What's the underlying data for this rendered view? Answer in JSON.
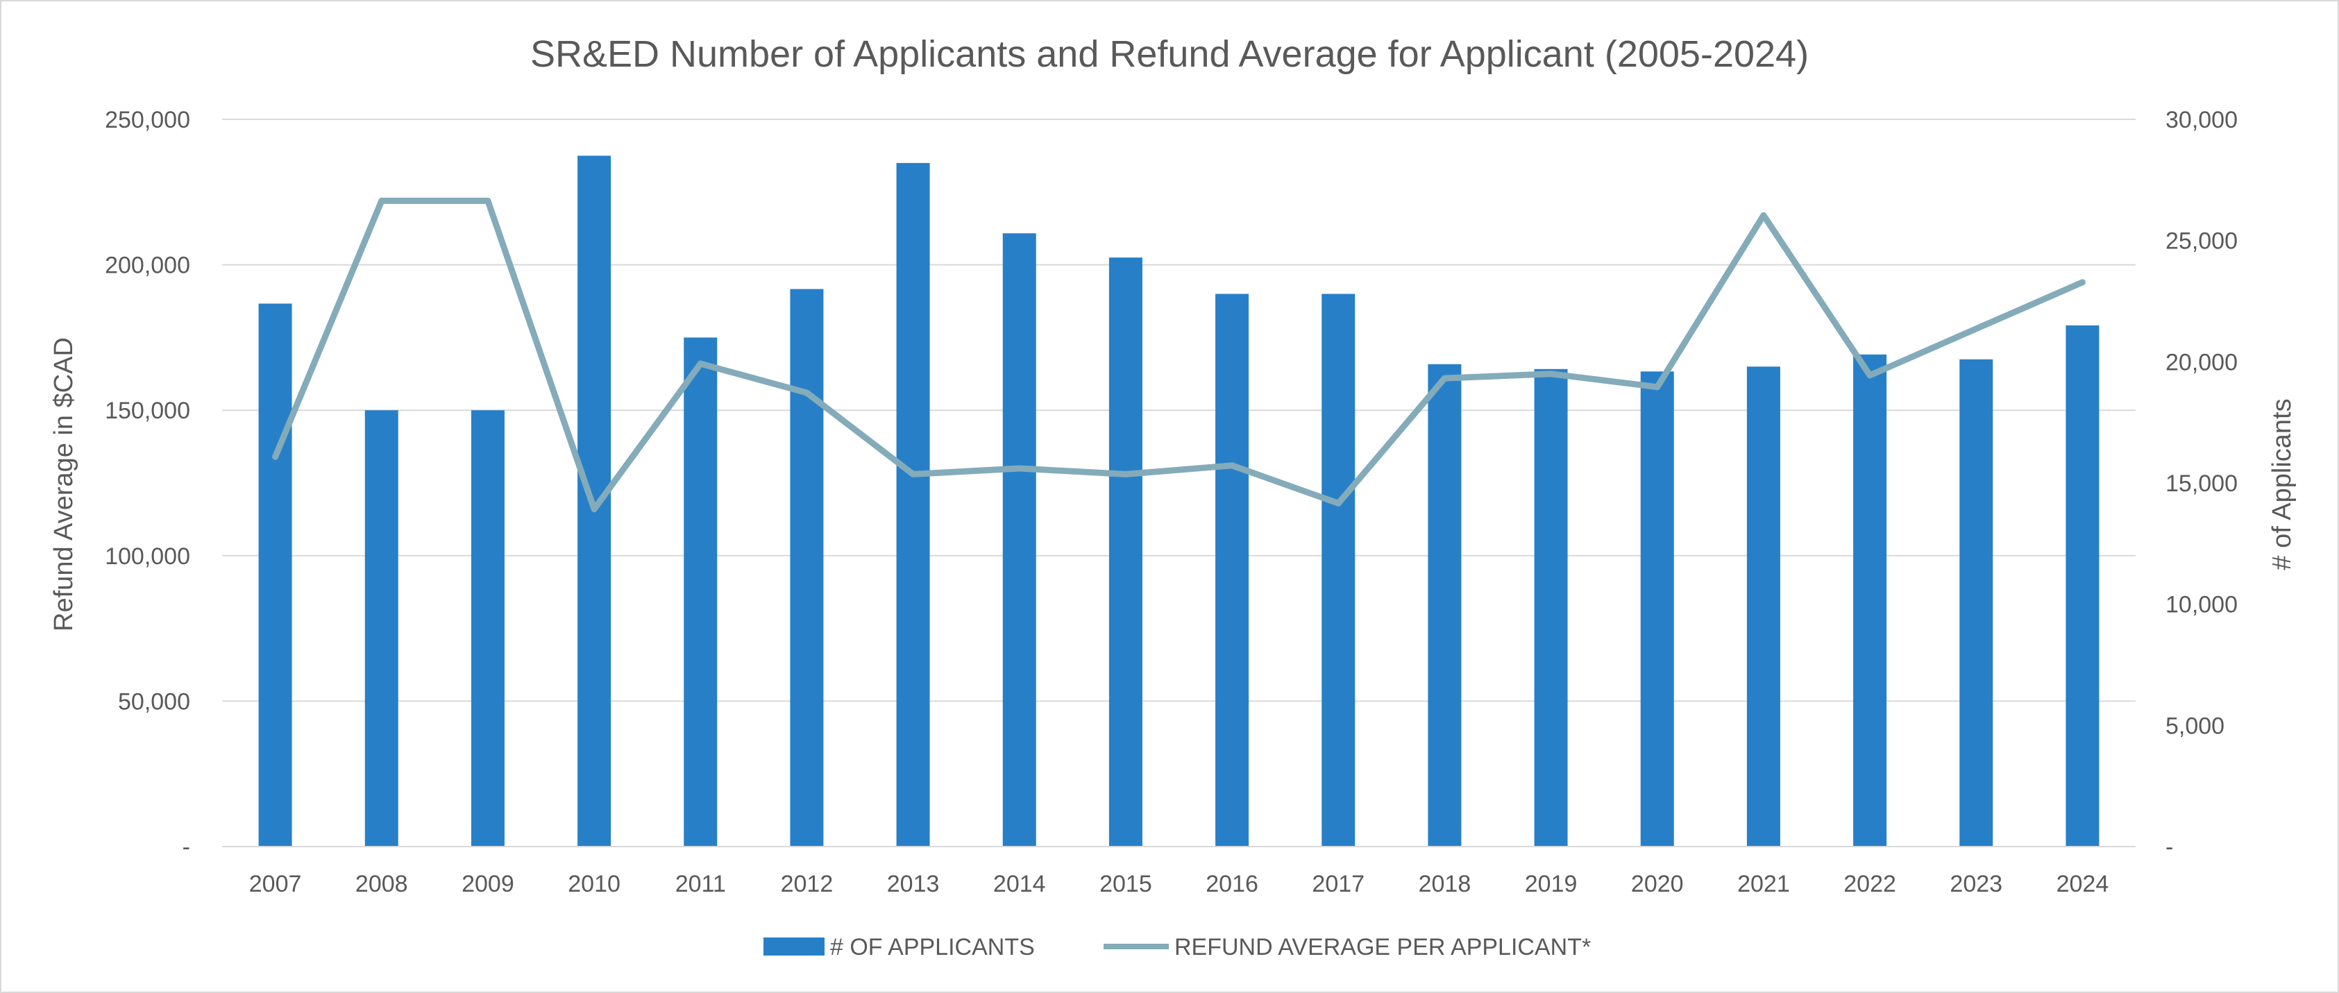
{
  "chart_data": {
    "type": "bar",
    "title": "SR&ED Number of Applicants and Refund Average for Applicant (2005-2024)",
    "categories": [
      "2007",
      "2008",
      "2009",
      "2010",
      "2011",
      "2012",
      "2013",
      "2014",
      "2015",
      "2016",
      "2017",
      "2018",
      "2019",
      "2020",
      "2021",
      "2022",
      "2023",
      "2024"
    ],
    "series": [
      {
        "name": "# OF APPLICANTS",
        "type": "bar",
        "axis": "right",
        "color": "#2780c7",
        "values": [
          22400,
          18000,
          18000,
          28500,
          21000,
          23000,
          28200,
          25300,
          24300,
          22800,
          22800,
          19900,
          19700,
          19600,
          19800,
          20300,
          20100,
          21500
        ]
      },
      {
        "name": "REFUND AVERAGE PER APPLICANT*",
        "type": "line",
        "axis": "left",
        "color": "#84abb9",
        "values": [
          134000,
          222000,
          222000,
          116000,
          166000,
          156000,
          128000,
          130000,
          128000,
          131000,
          118000,
          161000,
          162500,
          158000,
          217000,
          162000,
          178000,
          194000
        ]
      }
    ],
    "ylabel": "Refund Average in $CAD",
    "y2label": "# of  Applicants",
    "ylim": [
      0,
      250000
    ],
    "y2lim": [
      0,
      30000
    ],
    "yticks": [
      "-",
      "50,000",
      "100,000",
      "150,000",
      "200,000",
      "250,000"
    ],
    "y2ticks": [
      "-",
      "5,000",
      "10,000",
      "15,000",
      "20,000",
      "25,000",
      "30,000"
    ],
    "grid": true,
    "legend": "bottom"
  }
}
